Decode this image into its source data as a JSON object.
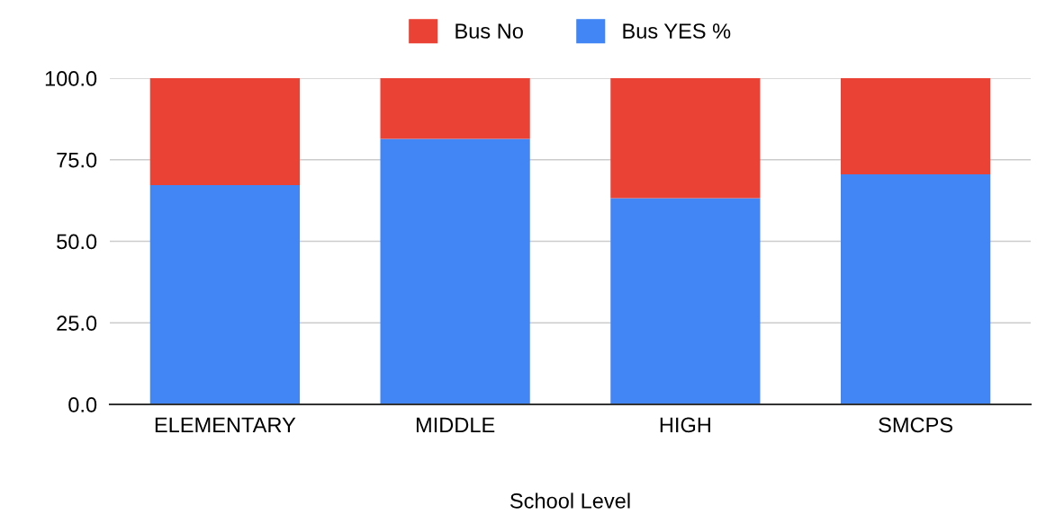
{
  "chart_data": {
    "type": "bar",
    "stacked": true,
    "xlabel": "School Level",
    "categories": [
      "ELEMENTARY",
      "MIDDLE",
      "HIGH",
      "SMCPS"
    ],
    "series": [
      {
        "name": "Bus YES %",
        "color": "#4285f4",
        "values": [
          67.2,
          81.4,
          63.2,
          70.5
        ]
      },
      {
        "name": "Bus No",
        "color": "#ea4335",
        "values": [
          32.8,
          18.6,
          36.8,
          29.5
        ]
      }
    ],
    "ylim": [
      0,
      100
    ],
    "yticks": [
      {
        "value": 0,
        "label": "0.0"
      },
      {
        "value": 25,
        "label": "25.0"
      },
      {
        "value": 50,
        "label": "50.0"
      },
      {
        "value": 75,
        "label": "75.0"
      },
      {
        "value": 100,
        "label": "100.0"
      }
    ],
    "grid": "y",
    "legend": "top"
  }
}
